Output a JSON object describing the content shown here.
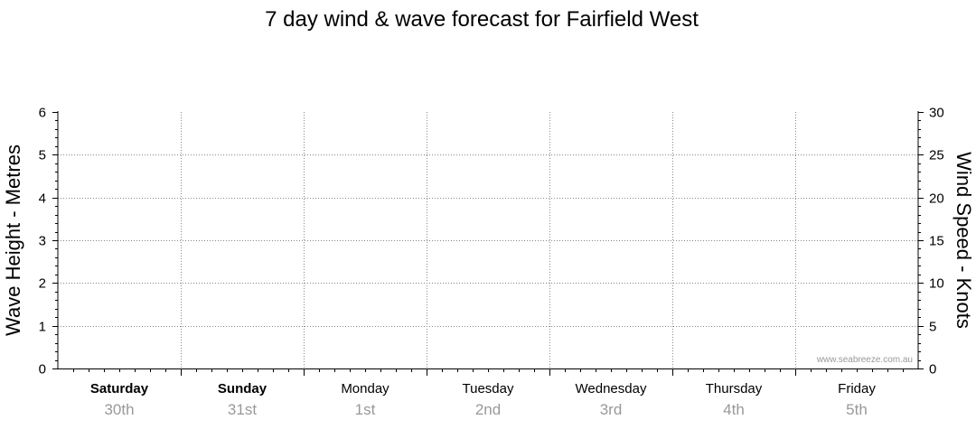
{
  "chart_data": {
    "type": "line",
    "title": "7 day wind & wave forecast for Fairfield West",
    "ylabel_left": "Wave Height - Metres",
    "ylabel_right": "Wind Speed - Knots",
    "ylim_left": [
      0,
      6
    ],
    "ylim_right": [
      0,
      30
    ],
    "yticks_left": [
      "0",
      "1",
      "2",
      "3",
      "4",
      "5",
      "6"
    ],
    "yticks_right": [
      "0",
      "5",
      "10",
      "15",
      "20",
      "25",
      "30"
    ],
    "days": [
      {
        "day": "Saturday",
        "date": "30th",
        "bold": true
      },
      {
        "day": "Sunday",
        "date": "31st",
        "bold": true
      },
      {
        "day": "Monday",
        "date": "1st",
        "bold": false
      },
      {
        "day": "Tuesday",
        "date": "2nd",
        "bold": false
      },
      {
        "day": "Wednesday",
        "date": "3rd",
        "bold": false
      },
      {
        "day": "Thursday",
        "date": "4th",
        "bold": false
      },
      {
        "day": "Friday",
        "date": "5th",
        "bold": false
      }
    ],
    "series": [],
    "grid": true,
    "watermark": "www.seabreeze.com.au"
  }
}
